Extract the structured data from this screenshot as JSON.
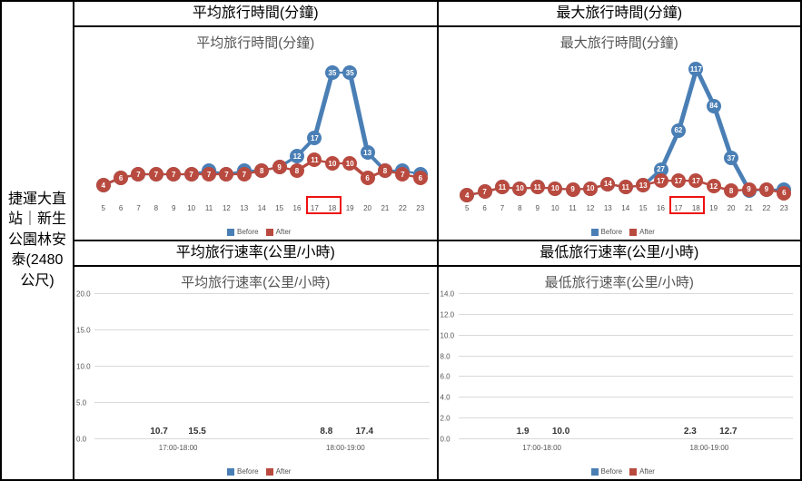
{
  "side_label": "捷運大直站｜新生公園林安泰(2480公尺)",
  "colors": {
    "before": "#4a7fb5",
    "after": "#b94a3f",
    "grid": "#d9d9d9",
    "axis_text": "#595959",
    "highlight_box": "#e11111"
  },
  "font": {
    "title_size": 15,
    "axis_size": 8,
    "data_label_size": 8
  },
  "headers": {
    "tl": "平均旅行時間(分鐘)",
    "tr": "最大旅行時間(分鐘)",
    "bl": "平均旅行速率(公里/小時)",
    "br": "最低旅行速率(公里/小時)"
  },
  "legend": {
    "before": "Before",
    "after": "After"
  },
  "line_x_categories": [
    "5",
    "6",
    "7",
    "8",
    "9",
    "10",
    "11",
    "12",
    "13",
    "14",
    "15",
    "16",
    "17",
    "18",
    "19",
    "20",
    "21",
    "22",
    "23"
  ],
  "highlight_x_indices": [
    12,
    13
  ],
  "avg_time": {
    "title": "平均旅行時間(分鐘)",
    "ymax": 40,
    "before": [
      4,
      6,
      7,
      7,
      7,
      7,
      8,
      7,
      8,
      8,
      9,
      12,
      17,
      35,
      35,
      13,
      8,
      8,
      7
    ],
    "after": [
      4,
      6,
      7,
      7,
      7,
      7,
      7,
      7,
      7,
      8,
      9,
      8,
      11,
      10,
      10,
      6,
      8,
      7,
      6
    ]
  },
  "max_time": {
    "title": "最大旅行時間(分鐘)",
    "ymax": 130,
    "before": [
      4,
      7,
      11,
      10,
      11,
      10,
      9,
      10,
      14,
      11,
      13,
      27,
      62,
      117,
      84,
      37,
      8,
      9,
      9
    ],
    "after": [
      4,
      7,
      11,
      10,
      11,
      10,
      9,
      10,
      14,
      11,
      13,
      17,
      17,
      17,
      12,
      8,
      9,
      9,
      6
    ]
  },
  "avg_speed": {
    "title": "平均旅行速率(公里/小時)",
    "ymax": 20,
    "ytick_step": 5,
    "yticks": [
      "0.0",
      "5.0",
      "10.0",
      "15.0",
      "20.0"
    ],
    "categories": [
      "17:00-18:00",
      "18:00-19:00"
    ],
    "before": [
      10.7,
      8.8
    ],
    "after": [
      15.5,
      17.4
    ]
  },
  "min_speed": {
    "title": "最低旅行速率(公里/小時)",
    "ymax": 14,
    "ytick_step": 2,
    "yticks": [
      "0.0",
      "2.0",
      "4.0",
      "6.0",
      "8.0",
      "10.0",
      "12.0",
      "14.0"
    ],
    "categories": [
      "17:00-18:00",
      "18:00-19:00"
    ],
    "before": [
      1.9,
      2.3
    ],
    "after": [
      10.0,
      12.7
    ]
  }
}
